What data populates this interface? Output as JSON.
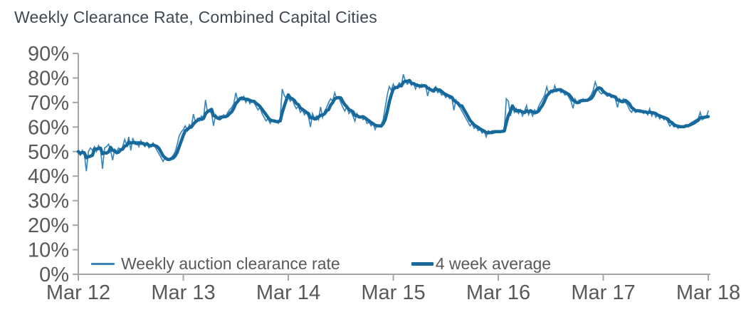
{
  "title": "Weekly Clearance Rate, Combined Capital Cities",
  "colors": {
    "weekly_line": "#3A87BE",
    "average_line": "#17699C",
    "axis_line": "#A6A6A6",
    "axis_text": "#595959",
    "title_text": "#3E4953"
  },
  "chart_data": {
    "type": "line",
    "title": "Weekly Clearance Rate, Combined Capital Cities",
    "xlabel": "",
    "ylabel": "",
    "x_tick_labels": [
      "Mar 12",
      "Mar 13",
      "Mar 14",
      "Mar 15",
      "Mar 16",
      "Mar 17",
      "Mar 18"
    ],
    "y_tick_labels": [
      "0%",
      "10%",
      "20%",
      "30%",
      "40%",
      "50%",
      "60%",
      "70%",
      "80%",
      "90%"
    ],
    "ylim": [
      0,
      90
    ],
    "y_unit": "%",
    "grid": false,
    "legend_position": "bottom-inside",
    "x_axis_note": "weekly data, one point per week from Mar 2012 to Mar 2018",
    "series": [
      {
        "name": "Weekly auction clearance rate",
        "style": "thin",
        "values": [
          50,
          48.5,
          50.5,
          49,
          42,
          50,
          51.5,
          50.5,
          52,
          50,
          52.5,
          51,
          43,
          51.5,
          52,
          53,
          50.5,
          46.5,
          51,
          50,
          51.5,
          50.5,
          52,
          55,
          52.5,
          56,
          50.5,
          55.5,
          53,
          54,
          52,
          54.5,
          53,
          52,
          53.5,
          51.5,
          52.5,
          53.5,
          52,
          50.5,
          49,
          47.5,
          46,
          47.5,
          46.5,
          47,
          47.5,
          48.5,
          50,
          53,
          56.5,
          58,
          59,
          60.5,
          58.5,
          61,
          60,
          65.3,
          62,
          63.5,
          62.5,
          64.5,
          63.5,
          71,
          66,
          66.5,
          65.5,
          60.5,
          65,
          63.5,
          64.5,
          63.5,
          65,
          64,
          66,
          67,
          68,
          69.5,
          74,
          70.5,
          72,
          71,
          72.5,
          70,
          71.5,
          69.5,
          71,
          70,
          68.5,
          67,
          68,
          65.5,
          64,
          62.5,
          63.5,
          61.5,
          63,
          62,
          62.5,
          61.5,
          64,
          75.5,
          73,
          71.5,
          72.5,
          70.5,
          71.5,
          69,
          67.5,
          68.5,
          66,
          67,
          65,
          66,
          64,
          60,
          65.5,
          63.5,
          64.5,
          63,
          68.2,
          64,
          66.5,
          68,
          70,
          71.5,
          70.5,
          74,
          71.5,
          72,
          70,
          68,
          66.5,
          68.5,
          65.5,
          66.5,
          64.5,
          62.4,
          65.5,
          64,
          64.5,
          63,
          63.5,
          61.5,
          62,
          60.5,
          61.5,
          59,
          61,
          60.5,
          61,
          63,
          68,
          73,
          76.5,
          75,
          77.5,
          75.5,
          76.5,
          78,
          77,
          81.5,
          78.5,
          77.5,
          78.5,
          77,
          78,
          75.5,
          77.5,
          76,
          77.5,
          76.5,
          77,
          72.6,
          76,
          74.5,
          75.5,
          76.5,
          74,
          74.5,
          73,
          73.5,
          72,
          73,
          71.5,
          72,
          66.8,
          71,
          69,
          68,
          66.5,
          65,
          63.5,
          62,
          60.5,
          61.5,
          59.5,
          60,
          58.5,
          59,
          57.5,
          58.5,
          56,
          58.5,
          58,
          58.5,
          57.5,
          58.5,
          58,
          58.5,
          58,
          59,
          71.5,
          70.5,
          64.5,
          68,
          66,
          67.5,
          65.5,
          67,
          64.5,
          66.5,
          68.8,
          65,
          66.5,
          64.5,
          67,
          66,
          68.5,
          70,
          71.5,
          73,
          76.4,
          73.5,
          75,
          74,
          76.9,
          74.5,
          75.5,
          74,
          74.5,
          73,
          73.5,
          72,
          70.5,
          67.6,
          71.5,
          70,
          71,
          70.5,
          71.5,
          70.5,
          71,
          72,
          73,
          75,
          78.4,
          76,
          74.5,
          73.5,
          74,
          73.5,
          72.5,
          73,
          72,
          72.5,
          71.5,
          68,
          71.5,
          70.5,
          71.5,
          70,
          69,
          67,
          66,
          67.5,
          66,
          67,
          66,
          66.5,
          65.5,
          66.5,
          65,
          67.5,
          64.5,
          66,
          64,
          65,
          63.3,
          64.5,
          63,
          63.5,
          62,
          60.4,
          61.5,
          60,
          60.5,
          59.5,
          60.5,
          60,
          60.5,
          61,
          60.5,
          61.5,
          62,
          62.5,
          63,
          63.5,
          66,
          63,
          63.5,
          64,
          66.5
        ]
      },
      {
        "name": "4 week average",
        "style": "thick",
        "derived": "trailing 4-week mean of the weekly series"
      }
    ]
  }
}
